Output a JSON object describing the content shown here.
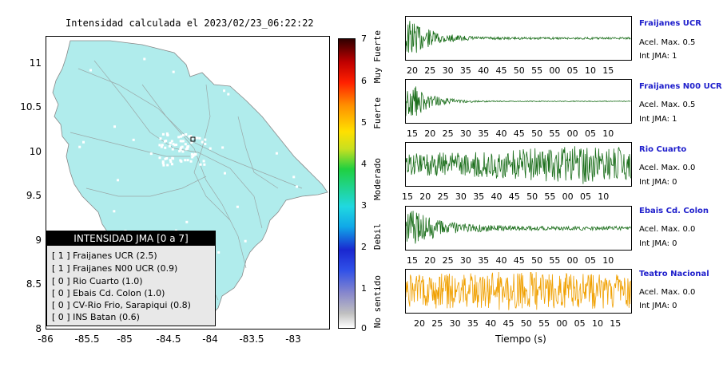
{
  "map": {
    "title": "Intensidad calculada el 2023/02/23_06:22:22",
    "y_ticks": [
      "11",
      "10.5",
      "10",
      "9.5",
      "9",
      "8.5",
      "8"
    ],
    "x_ticks": [
      "-86",
      "-85.5",
      "-85",
      "-84.5",
      "-84",
      "-83.5",
      "-83"
    ],
    "colors": {
      "land": "#b0ecec",
      "road": "#9aa8a8",
      "station": "#ffffff"
    }
  },
  "legend": {
    "header": "INTENSIDAD JMA [0 a 7]",
    "items": [
      "[ 1 ]  Fraijanes UCR (2.5)",
      "[ 1 ]  Fraijanes N00 UCR (0.9)",
      "[ 0 ]  Rio Cuarto (1.0)",
      "[ 0 ]  Ebais Cd. Colon (1.0)",
      "[ 0 ]  CV-Rio Frio, Sarapiqui (0.8)",
      "[ 0 ]  INS Batan (0.6)"
    ]
  },
  "colorbar": {
    "ticks": [
      "7",
      "6",
      "5",
      "4",
      "3",
      "2",
      "1",
      "0"
    ],
    "labels": [
      "Muy Fuerte",
      "Fuerte",
      "Moderado",
      "Debil",
      "No sentido"
    ]
  },
  "traces": [
    {
      "name": "Fraijanes UCR",
      "acel": "Acel. Max. 0.5",
      "jma": "Int JMA: 1",
      "color": "#1a6e1a",
      "ticks": [
        "20",
        "25",
        "30",
        "35",
        "40",
        "45",
        "50",
        "55",
        "00",
        "05",
        "10",
        "15"
      ]
    },
    {
      "name": "Fraijanes N00 UCR",
      "acel": "Acel. Max. 0.5",
      "jma": "Int JMA: 1",
      "color": "#1a6e1a",
      "ticks": [
        "15",
        "20",
        "25",
        "30",
        "35",
        "40",
        "45",
        "50",
        "55",
        "00",
        "05",
        "10"
      ]
    },
    {
      "name": "Rio Cuarto",
      "acel": "Acel. Max. 0.0",
      "jma": "Int JMA: 0",
      "color": "#1a6e1a",
      "ticks": [
        "15",
        "20",
        "25",
        "30",
        "35",
        "40",
        "45",
        "50",
        "55",
        "00",
        "05",
        "10"
      ]
    },
    {
      "name": "Ebais Cd. Colon",
      "acel": "Acel. Max. 0.0",
      "jma": "Int JMA: 0",
      "color": "#1a6e1a",
      "ticks": [
        "15",
        "20",
        "25",
        "30",
        "35",
        "40",
        "45",
        "50",
        "55",
        "00",
        "05",
        "10"
      ]
    },
    {
      "name": "Teatro Nacional",
      "acel": "Acel. Max. 0.0",
      "jma": "Int JMA: 0",
      "color": "#f0a000",
      "ticks": [
        "20",
        "25",
        "30",
        "35",
        "40",
        "45",
        "50",
        "55",
        "00",
        "05",
        "10",
        "15"
      ]
    }
  ],
  "xaxis_label": "Tiempo (s)"
}
